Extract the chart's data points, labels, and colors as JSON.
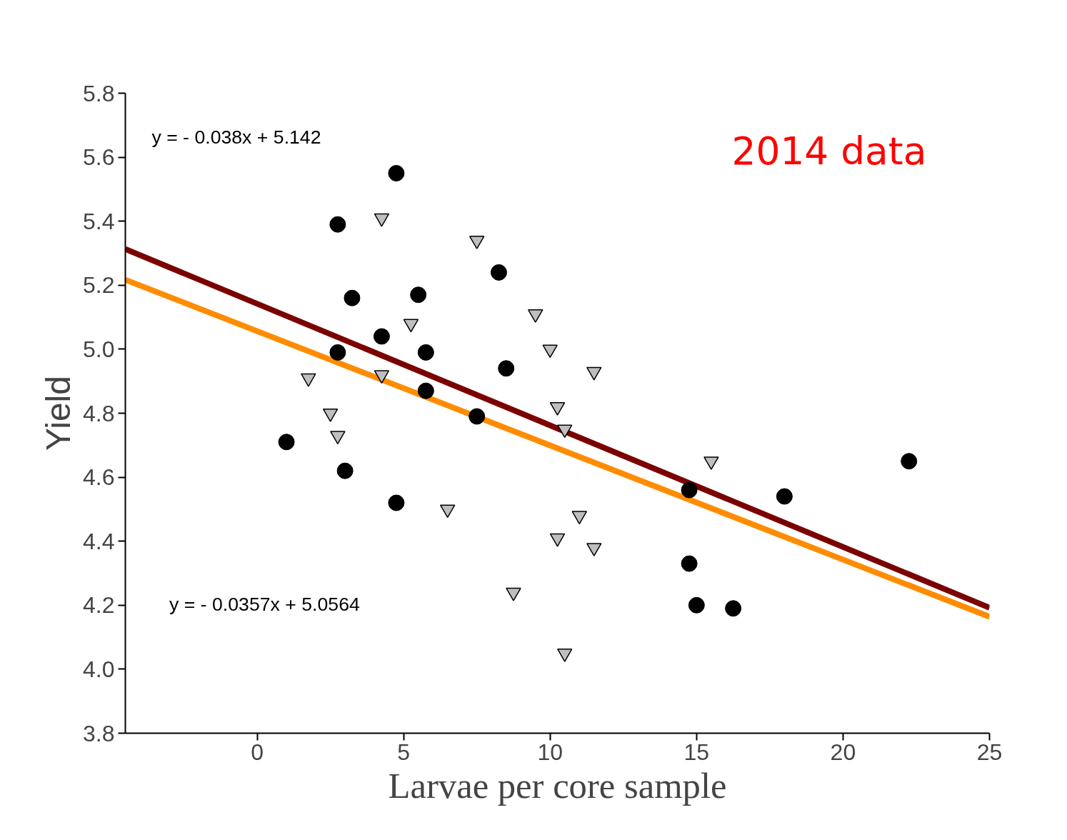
{
  "chart_data": {
    "type": "scatter",
    "xlabel": "Larvae per core sample",
    "ylabel": "Yield",
    "xlim": [
      -4.5,
      25
    ],
    "ylim": [
      3.8,
      5.8
    ],
    "xticks": [
      0,
      5,
      10,
      15,
      20,
      25
    ],
    "yticks": [
      {
        "value": 3.8,
        "label": "3.8"
      },
      {
        "value": 4.0,
        "label": "4.0"
      },
      {
        "value": 4.2,
        "label": "4.2"
      },
      {
        "value": 4.4,
        "label": "4.4"
      },
      {
        "value": 4.6,
        "label": "4.6"
      },
      {
        "value": 4.8,
        "label": "4.8"
      },
      {
        "value": 5.0,
        "label": "5.0"
      },
      {
        "value": 5.2,
        "label": "5.2"
      },
      {
        "value": 5.4,
        "label": "5.4"
      },
      {
        "value": 5.6,
        "label": "5.6"
      },
      {
        "value": 5.8,
        "label": "5.8"
      }
    ],
    "grid": false,
    "annotations": [
      "y = - 0.038x + 5.142",
      "y = - 0.0357x + 5.0564",
      "2014 data"
    ],
    "series": [
      {
        "marker": "circle",
        "color": "#000000",
        "x": [
          4.75,
          2.75,
          8.25,
          3.24,
          5.5,
          4.25,
          2.75,
          5.76,
          8.5,
          5.76,
          7.5,
          1.0,
          3.0,
          4.75,
          14.75,
          18.0,
          22.25,
          14.75,
          15.0,
          16.25
        ],
        "values": [
          5.55,
          5.39,
          5.24,
          5.16,
          5.17,
          5.04,
          4.99,
          4.99,
          4.94,
          4.87,
          4.79,
          4.71,
          4.62,
          4.52,
          4.56,
          4.54,
          4.65,
          4.33,
          4.2,
          4.19
        ]
      },
      {
        "marker": "triangle",
        "color": "#bfbfbf",
        "x": [
          4.25,
          7.5,
          9.5,
          5.25,
          10.0,
          11.5,
          4.25,
          1.75,
          10.25,
          2.5,
          10.5,
          2.75,
          15.5,
          6.5,
          11.0,
          10.25,
          11.5,
          8.75,
          10.5
        ],
        "values": [
          5.41,
          5.34,
          5.11,
          5.08,
          5.0,
          4.93,
          4.92,
          4.91,
          4.82,
          4.8,
          4.75,
          4.73,
          4.65,
          4.5,
          4.48,
          4.41,
          4.38,
          4.24,
          4.05
        ]
      },
      {
        "type": "line",
        "color": "#7b0000",
        "x": [
          -4.5,
          25
        ],
        "values": [
          5.313,
          4.192
        ]
      },
      {
        "type": "line",
        "color": "#ff8c00",
        "x": [
          -4.5,
          25
        ],
        "values": [
          5.217,
          4.164
        ]
      }
    ]
  }
}
